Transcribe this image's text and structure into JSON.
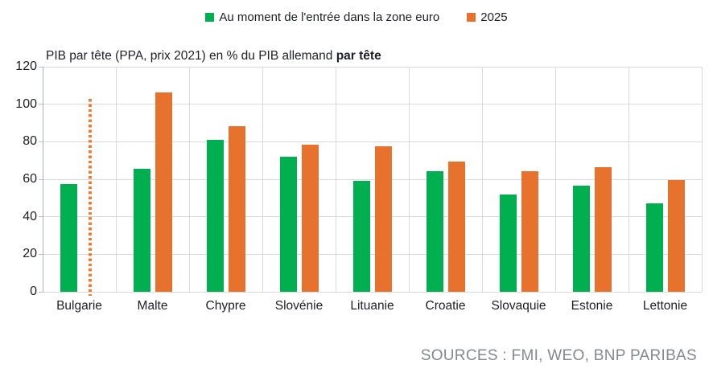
{
  "legend": {
    "items": [
      {
        "label": "Au moment de l'entrée dans la zone euro",
        "color": "#00b050"
      },
      {
        "label": "2025",
        "color": "#e7722e"
      }
    ]
  },
  "title": {
    "regular": "PIB par tête (PPA, prix 2021) en % du PIB allemand ",
    "bold": "par tête"
  },
  "source": "SOURCES : FMI, WEO, BNP PARIBAS",
  "chart_data": {
    "type": "bar",
    "title": "PIB par tête (PPA, prix 2021) en % du PIB allemand par tête",
    "categories": [
      "Bulgarie",
      "Malte",
      "Chypre",
      "Slovénie",
      "Lituanie",
      "Croatie",
      "Slovaquie",
      "Estonie",
      "Lettonie"
    ],
    "series": [
      {
        "name": "Au moment de l'entrée dans la zone euro",
        "color": "#00b050",
        "values": [
          57.5,
          65.5,
          81,
          72,
          59,
          64.5,
          52,
          56.5,
          47
        ]
      },
      {
        "name": "2025",
        "color": "#e7722e",
        "values": [
          null,
          106.5,
          88.5,
          78.5,
          77.5,
          69.5,
          64.5,
          66.5,
          59.5
        ]
      }
    ],
    "annotations": [
      {
        "type": "dotted-vertical-line",
        "category": "Bulgarie",
        "series": "2025",
        "value": 103,
        "color": "#ed7d31"
      }
    ],
    "ylim": [
      0,
      120
    ],
    "yticks": [
      0,
      20,
      40,
      60,
      80,
      100,
      120
    ],
    "grid": true,
    "legend_position": "top-center"
  },
  "colors": {
    "grid": "#d9d9d9",
    "axis_line": "#aab2bd",
    "text": "#1d1f27",
    "source_text": "#85888c"
  }
}
